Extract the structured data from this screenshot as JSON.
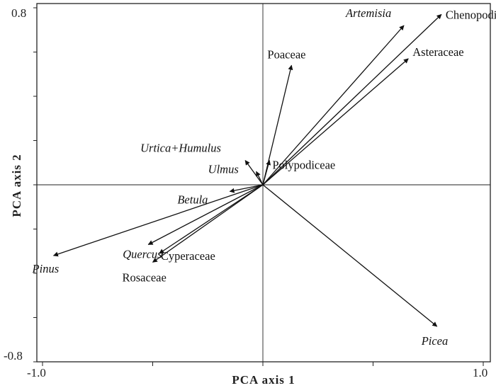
{
  "chart_data": {
    "type": "scatter",
    "subtype": "pca-biplot",
    "title": "",
    "xlabel": "PCA axis 1",
    "ylabel": "PCA axis 2",
    "xlim": [
      -1.0,
      1.0
    ],
    "ylim": [
      -0.8,
      0.8
    ],
    "x_tick_labels": [
      "-1.0",
      "1.0"
    ],
    "y_tick_labels": [
      "0.8",
      "-0.8"
    ],
    "reference_lines": "x = 0 and y = 0",
    "grid": false,
    "vectors": [
      {
        "name": "Artemisia",
        "italic": true,
        "x": 0.64,
        "y": 0.72
      },
      {
        "name": "Chenopodiaceae",
        "italic": false,
        "x": 0.81,
        "y": 0.77
      },
      {
        "name": "Asteraceae",
        "italic": false,
        "x": 0.66,
        "y": 0.57
      },
      {
        "name": "Poaceae",
        "italic": false,
        "x": 0.13,
        "y": 0.54
      },
      {
        "name": "Urtica+Humulus",
        "italic": true,
        "x": -0.08,
        "y": 0.11
      },
      {
        "name": "Polypodiceae",
        "italic": false,
        "x": 0.03,
        "y": 0.11
      },
      {
        "name": "Ulmus",
        "italic": true,
        "x": -0.03,
        "y": 0.06
      },
      {
        "name": "Betula",
        "italic": true,
        "x": -0.15,
        "y": -0.03
      },
      {
        "name": "Pinus",
        "italic": true,
        "x": -0.95,
        "y": -0.32
      },
      {
        "name": "Quercus",
        "italic": true,
        "x": -0.52,
        "y": -0.27
      },
      {
        "name": "Cyperaceae",
        "italic": false,
        "x": -0.47,
        "y": -0.31
      },
      {
        "name": "Rosaceae",
        "italic": false,
        "x": -0.5,
        "y": -0.35
      },
      {
        "name": "Picea",
        "italic": true,
        "x": 0.79,
        "y": -0.64
      }
    ]
  }
}
